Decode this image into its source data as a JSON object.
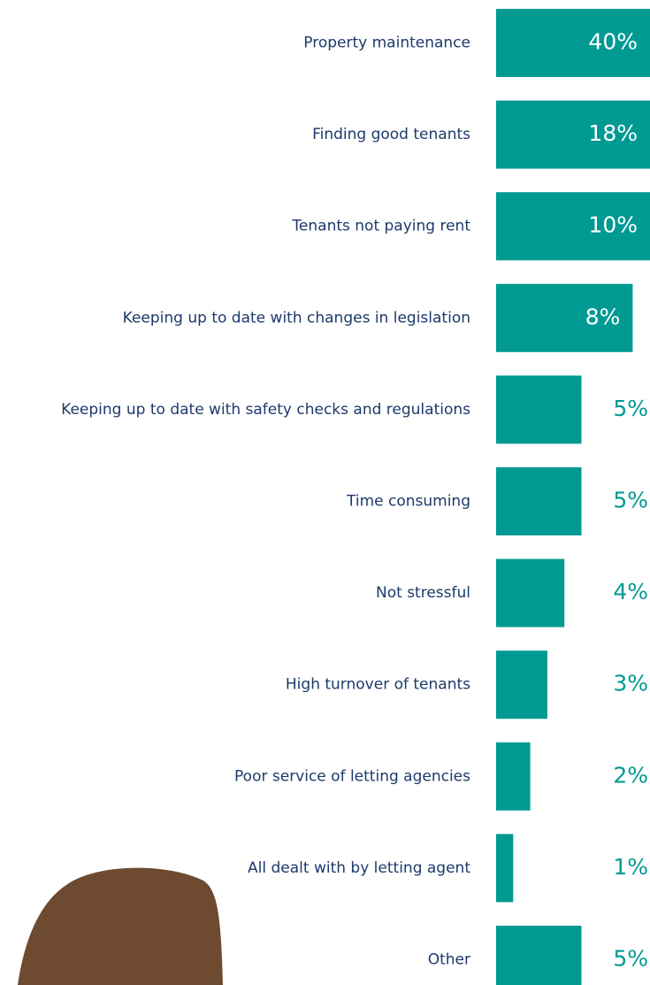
{
  "chart_data": {
    "type": "bar",
    "orientation": "horizontal",
    "categories": [
      "Property maintenance",
      "Finding good tenants",
      "Tenants not paying rent",
      "Keeping up to date with changes in legislation",
      "Keeping up to date with safety checks and regulations",
      "Time consuming",
      "Not stressful",
      "High turnover of tenants",
      "Poor service of letting agencies",
      "All dealt with by letting agent",
      "Other"
    ],
    "values": [
      40,
      18,
      10,
      8,
      5,
      5,
      4,
      3,
      2,
      1,
      5
    ],
    "value_labels": [
      "40%",
      "18%",
      "10%",
      "8%",
      "5%",
      "5%",
      "4%",
      "3%",
      "2%",
      "1%",
      "5%"
    ],
    "color": "#009a93"
  }
}
